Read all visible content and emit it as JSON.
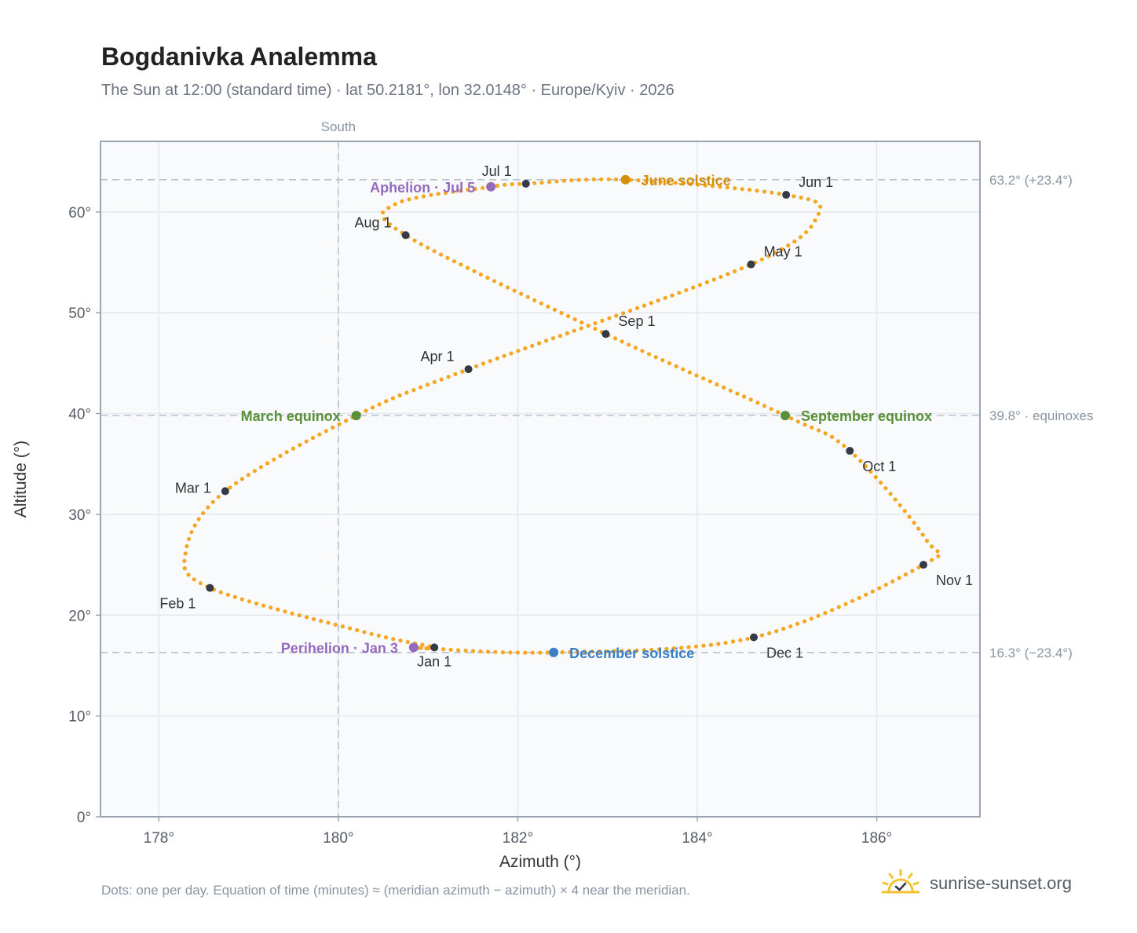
{
  "title": "Bogdanivka Analemma",
  "subtitle": "The Sun at 12:00 (standard time) · lat 50.2181°, lon 32.0148° · Europe/Kyiv · 2026",
  "footnote": "Dots: one per day. Equation of time (minutes) ≈ (meridian azimuth − azimuth) × 4 near the meridian.",
  "brand": {
    "name": "sunrise-sunset.org",
    "icon": "sun-horizon-check-icon",
    "color": "#f2c230"
  },
  "colors": {
    "path": "#f5a623",
    "month": "#343a46",
    "solstice_june": "#d4900a",
    "solstice_december": "#3a7fc4",
    "equinox": "#5a9038",
    "apsis": "#9569bc",
    "grid": "#e5e9ef",
    "ref": "#b8c2cc",
    "plot_bg": "#f8fafc",
    "frame": "#9aa5b4"
  },
  "chart_data": {
    "type": "scatter",
    "xlabel": "Azimuth (°)",
    "ylabel": "Altitude (°)",
    "xlim": [
      177.35,
      187.15
    ],
    "ylim": [
      0,
      67
    ],
    "xticks": [
      178,
      180,
      182,
      184,
      186
    ],
    "xtick_labels": [
      "178°",
      "180°",
      "182°",
      "184°",
      "186°"
    ],
    "yticks": [
      0,
      10,
      20,
      30,
      40,
      50,
      60
    ],
    "ytick_labels": [
      "0°",
      "10°",
      "20°",
      "30°",
      "40°",
      "50°",
      "60°"
    ],
    "grid": true,
    "south_line": {
      "x": 180,
      "label": "South"
    },
    "reference_lines": [
      {
        "y": 63.2,
        "label": "63.2° (+23.4°)"
      },
      {
        "y": 39.8,
        "label": "39.8° · equinoxes"
      },
      {
        "y": 16.3,
        "label": "16.3° (−23.4°)"
      }
    ],
    "path_keypoints": [
      {
        "x": 180.84,
        "y": 16.8
      },
      {
        "x": 181.07,
        "y": 16.8
      },
      {
        "x": 180.3,
        "y": 18.3
      },
      {
        "x": 178.57,
        "y": 22.7
      },
      {
        "x": 178.3,
        "y": 26.3
      },
      {
        "x": 178.74,
        "y": 32.3
      },
      {
        "x": 180.2,
        "y": 39.8
      },
      {
        "x": 181.45,
        "y": 44.4
      },
      {
        "x": 184.6,
        "y": 54.8
      },
      {
        "x": 185.35,
        "y": 59.8
      },
      {
        "x": 184.99,
        "y": 61.7
      },
      {
        "x": 183.2,
        "y": 63.2
      },
      {
        "x": 182.09,
        "y": 62.8
      },
      {
        "x": 181.7,
        "y": 62.5
      },
      {
        "x": 180.64,
        "y": 60.8
      },
      {
        "x": 180.75,
        "y": 57.7
      },
      {
        "x": 182.98,
        "y": 47.9
      },
      {
        "x": 184.98,
        "y": 39.8
      },
      {
        "x": 185.7,
        "y": 36.3
      },
      {
        "x": 186.55,
        "y": 27.5
      },
      {
        "x": 186.52,
        "y": 25.0
      },
      {
        "x": 184.63,
        "y": 17.8
      },
      {
        "x": 182.4,
        "y": 16.3
      },
      {
        "x": 180.84,
        "y": 16.8
      }
    ],
    "months": [
      {
        "label": "Jan 1",
        "x": 181.07,
        "y": 16.8,
        "pos": "below"
      },
      {
        "label": "Feb 1",
        "x": 178.57,
        "y": 22.7,
        "pos": "below-left"
      },
      {
        "label": "Mar 1",
        "x": 178.74,
        "y": 32.3,
        "pos": "left"
      },
      {
        "label": "Apr 1",
        "x": 181.45,
        "y": 44.4,
        "pos": "above-left"
      },
      {
        "label": "May 1",
        "x": 184.6,
        "y": 54.8,
        "pos": "above-right"
      },
      {
        "label": "Jun 1",
        "x": 184.99,
        "y": 61.7,
        "pos": "above-right"
      },
      {
        "label": "Jul 1",
        "x": 182.09,
        "y": 62.8,
        "pos": "above-left"
      },
      {
        "label": "Aug 1",
        "x": 180.75,
        "y": 57.7,
        "pos": "above-left"
      },
      {
        "label": "Sep 1",
        "x": 182.98,
        "y": 47.9,
        "pos": "above-right"
      },
      {
        "label": "Oct 1",
        "x": 185.7,
        "y": 36.3,
        "pos": "below-right"
      },
      {
        "label": "Nov 1",
        "x": 186.52,
        "y": 25.0,
        "pos": "below-right"
      },
      {
        "label": "Dec 1",
        "x": 184.63,
        "y": 17.8,
        "pos": "below-right"
      }
    ],
    "events": [
      {
        "label": "June solstice",
        "x": 183.2,
        "y": 63.2,
        "color": "#d4900a",
        "side": "right"
      },
      {
        "label": "December solstice",
        "x": 182.4,
        "y": 16.3,
        "color": "#3a7fc4",
        "side": "right"
      },
      {
        "label": "March equinox",
        "x": 180.2,
        "y": 39.8,
        "color": "#5a9038",
        "side": "left"
      },
      {
        "label": "September equinox",
        "x": 184.98,
        "y": 39.8,
        "color": "#5a9038",
        "side": "right"
      },
      {
        "label": "Aphelion · Jul 5",
        "x": 181.7,
        "y": 62.5,
        "color": "#9569bc",
        "side": "left"
      },
      {
        "label": "Perihelion · Jan 3",
        "x": 180.84,
        "y": 16.8,
        "color": "#9569bc",
        "side": "left"
      }
    ]
  }
}
